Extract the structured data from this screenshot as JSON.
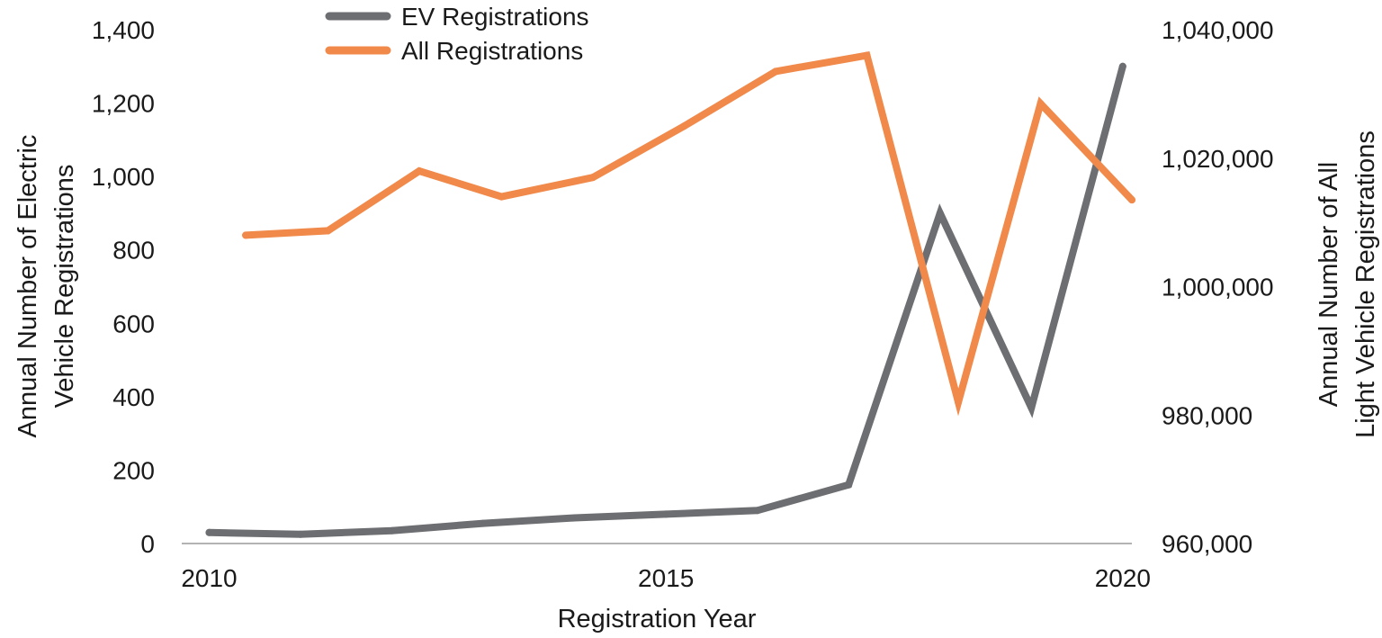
{
  "chart_data": {
    "type": "line",
    "title": "",
    "xlabel": "Registration Year",
    "ylabel_left": "Annual Number of Electric Vehicle Registrations",
    "ylabel_left_lines": [
      "Annual Number of Electric",
      "Vehicle Registrations"
    ],
    "ylabel_right": "Annual Number of All Light Vehicle Registrations",
    "ylabel_right_lines": [
      "Annual Number of All",
      "Light Vehicle Registrations"
    ],
    "xlim": [
      2009.7,
      2020.1
    ],
    "x_ticks": [
      2010,
      2015,
      2020
    ],
    "x_tick_labels": [
      "2010",
      "2015",
      "2020"
    ],
    "ylim_left": [
      0,
      1400
    ],
    "y_ticks_left": [
      0,
      200,
      400,
      600,
      800,
      1000,
      1200,
      1400
    ],
    "y_tick_labels_left": [
      "0",
      "200",
      "400",
      "600",
      "800",
      "1,000",
      "1,200",
      "1,400"
    ],
    "ylim_right": [
      960000,
      1040000
    ],
    "y_ticks_right": [
      960000,
      980000,
      1000000,
      1020000,
      1040000
    ],
    "y_tick_labels_right": [
      "960,000",
      "980,000",
      "1,000,000",
      "1,020,000",
      "1,040,000"
    ],
    "grid": false,
    "legend_position": "top-center",
    "series": [
      {
        "name": "EV Registrations",
        "axis": "left",
        "color": "#6d6e71",
        "x": [
          2010,
          2011,
          2012,
          2013,
          2014,
          2015,
          2016,
          2017,
          2018,
          2019,
          2020
        ],
        "y": [
          30,
          25,
          35,
          55,
          70,
          80,
          90,
          160,
          900,
          370,
          1300
        ]
      },
      {
        "name": "All Registrations",
        "axis": "right",
        "color": "#f0894a",
        "x": [
          2010.4,
          2011.3,
          2012.3,
          2013.2,
          2014.2,
          2015.2,
          2016.2,
          2017.2,
          2018.2,
          2019.1,
          2020.1
        ],
        "y": [
          1008000,
          1008700,
          1018000,
          1014000,
          1017000,
          1025000,
          1033500,
          1036000,
          982000,
          1028500,
          1013500
        ]
      }
    ]
  }
}
